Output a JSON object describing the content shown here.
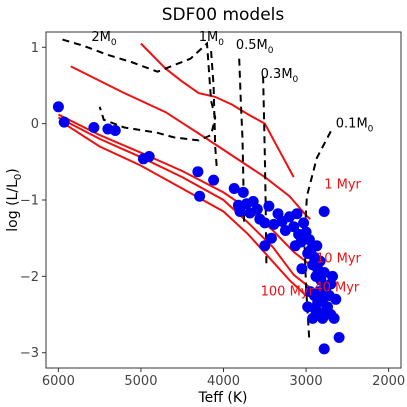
{
  "chart_data": {
    "type": "scatter",
    "title": "SDF00 models",
    "xlabel": "Teff (K)",
    "ylabel": "log (L/L",
    "ylabel_sub": "0",
    "ylabel_close": ")",
    "xlim": [
      6150,
      1850
    ],
    "ylim": [
      -3.2,
      1.2
    ],
    "x_ticks": [
      {
        "value": 6000,
        "label": "6000"
      },
      {
        "value": 5000,
        "label": "5000"
      },
      {
        "value": 4000,
        "label": "4000"
      },
      {
        "value": 3000,
        "label": "3000"
      },
      {
        "value": 2000,
        "label": "2000"
      }
    ],
    "y_ticks": [
      {
        "value": 1,
        "label": "1"
      },
      {
        "value": 0,
        "label": "0"
      },
      {
        "value": -1,
        "label": "−1"
      },
      {
        "value": -2,
        "label": "−2"
      },
      {
        "value": -3,
        "label": "−3"
      }
    ],
    "grid": false,
    "colors": {
      "points": "#0000ee",
      "isochrone": "#ee1111",
      "track": "#000000"
    },
    "points": [
      [
        6000,
        0.22
      ],
      [
        5930,
        0.02
      ],
      [
        5570,
        -0.05
      ],
      [
        5400,
        -0.07
      ],
      [
        5310,
        -0.09
      ],
      [
        4970,
        -0.46
      ],
      [
        4900,
        -0.43
      ],
      [
        4310,
        -0.63
      ],
      [
        4120,
        -0.74
      ],
      [
        4290,
        -0.95
      ],
      [
        3870,
        -0.85
      ],
      [
        3760,
        -0.9
      ],
      [
        3820,
        -1.07
      ],
      [
        3720,
        -1.05
      ],
      [
        3680,
        -1.17
      ],
      [
        3640,
        -1.02
      ],
      [
        3590,
        -1.12
      ],
      [
        3560,
        -1.25
      ],
      [
        3800,
        -1.15
      ],
      [
        3500,
        -1.3
      ],
      [
        3450,
        -1.08
      ],
      [
        3390,
        -1.32
      ],
      [
        3340,
        -1.18
      ],
      [
        3290,
        -1.28
      ],
      [
        3250,
        -1.4
      ],
      [
        3200,
        -1.22
      ],
      [
        3150,
        -1.35
      ],
      [
        3130,
        -1.6
      ],
      [
        3110,
        -1.18
      ],
      [
        3090,
        -1.45
      ],
      [
        3060,
        -1.55
      ],
      [
        3030,
        -1.3
      ],
      [
        3000,
        -1.42
      ],
      [
        3500,
        -1.6
      ],
      [
        3420,
        -1.5
      ],
      [
        2980,
        -1.7
      ],
      [
        2960,
        -1.52
      ],
      [
        2940,
        -1.65
      ],
      [
        2920,
        -1.85
      ],
      [
        2900,
        -1.75
      ],
      [
        2880,
        -2.0
      ],
      [
        2860,
        -1.9
      ],
      [
        2840,
        -2.2
      ],
      [
        2820,
        -2.05
      ],
      [
        2800,
        -2.3
      ],
      [
        2780,
        -1.95
      ],
      [
        2760,
        -2.15
      ],
      [
        2740,
        -2.4
      ],
      [
        2720,
        -2.25
      ],
      [
        2700,
        -2.1
      ],
      [
        2900,
        -2.25
      ],
      [
        2880,
        -2.45
      ],
      [
        2860,
        -2.35
      ],
      [
        2920,
        -2.55
      ],
      [
        2800,
        -2.55
      ],
      [
        2760,
        -2.45
      ],
      [
        2700,
        -2.5
      ],
      [
        2660,
        -2.55
      ],
      [
        2640,
        -2.3
      ],
      [
        2780,
        -1.15
      ],
      [
        2600,
        -2.8
      ],
      [
        2780,
        -2.95
      ],
      [
        2980,
        -2.4
      ],
      [
        2950,
        -2.2
      ],
      [
        2830,
        -1.8
      ],
      [
        3050,
        -1.9
      ],
      [
        2870,
        -1.6
      ],
      [
        2680,
        -2.0
      ]
    ],
    "isochrones": [
      {
        "label": "1 Myr",
        "x": [
          5850,
          5200,
          4700,
          4200,
          3850,
          3500,
          3200,
          3000,
          2950
        ],
        "y": [
          0.75,
          0.4,
          0.15,
          -0.2,
          -0.45,
          -0.7,
          -0.95,
          -1.2,
          -1.25
        ]
      },
      {
        "label": "",
        "x": [
          5000,
          4700,
          4500,
          4300,
          4100,
          3900,
          3700,
          3500,
          3300,
          3150
        ],
        "y": [
          1.05,
          0.72,
          0.55,
          0.4,
          0.35,
          0.25,
          0.12,
          0.0,
          -0.4,
          -0.7
        ]
      },
      {
        "label": "10 Myr",
        "x": [
          6000,
          5500,
          5000,
          4500,
          4000,
          3700,
          3400,
          3150,
          2950
        ],
        "y": [
          0.12,
          -0.15,
          -0.38,
          -0.62,
          -0.9,
          -1.12,
          -1.4,
          -1.68,
          -1.85
        ]
      },
      {
        "label": "40 Myr",
        "x": [
          6000,
          5500,
          5000,
          4500,
          4000,
          3700,
          3400,
          3150,
          2950
        ],
        "y": [
          0.08,
          -0.2,
          -0.44,
          -0.7,
          -1.0,
          -1.3,
          -1.62,
          -1.98,
          -2.15
        ]
      },
      {
        "label": "100 Myr",
        "x": [
          5900,
          5500,
          5000,
          4500,
          4000,
          3700,
          3450,
          3200,
          3000
        ],
        "y": [
          -0.02,
          -0.3,
          -0.55,
          -0.85,
          -1.15,
          -1.45,
          -1.75,
          -2.05,
          -2.25
        ]
      }
    ],
    "tracks": [
      {
        "label": "2M",
        "x": [
          5950,
          5700,
          5400,
          5100,
          4800,
          4400,
          4200,
          4150,
          4100,
          4150,
          4300,
          4600,
          4800,
          5200,
          5450,
          5500
        ],
        "y": [
          1.1,
          1.02,
          0.9,
          0.8,
          0.68,
          0.85,
          1.05,
          0.3,
          0.08,
          -0.15,
          -0.22,
          -0.18,
          -0.12,
          -0.05,
          0.05,
          0.22
        ]
      },
      {
        "label": "1M",
        "x": [
          4150,
          4120,
          4110,
          4100,
          4080
        ],
        "y": [
          0.95,
          0.5,
          0.1,
          -0.3,
          -0.6
        ]
      },
      {
        "label": "0.5M",
        "x": [
          3810,
          3790,
          3770,
          3760,
          3750
        ],
        "y": [
          0.85,
          0.3,
          -0.2,
          -0.7,
          -1.35
        ]
      },
      {
        "label": "0.3M",
        "x": [
          3520,
          3510,
          3500,
          3490,
          3480
        ],
        "y": [
          0.62,
          0.1,
          -0.4,
          -1.0,
          -1.85
        ]
      },
      {
        "label": "0.1M",
        "x": [
          2700,
          2870,
          2990,
          3020,
          3000,
          2960
        ],
        "y": [
          -0.1,
          -0.45,
          -0.95,
          -1.55,
          -2.15,
          -2.85
        ]
      }
    ],
    "track_labels": [
      {
        "text": "2M",
        "sub": "0",
        "x": 5600,
        "y": 1.08
      },
      {
        "text": "1M",
        "sub": "0",
        "x": 4300,
        "y": 1.08
      },
      {
        "text": "0.5M",
        "sub": "0",
        "x": 3850,
        "y": 0.98
      },
      {
        "text": "0.3M",
        "sub": "0",
        "x": 3550,
        "y": 0.6
      },
      {
        "text": "0.1M",
        "sub": "0",
        "x": 2640,
        "y": -0.05
      }
    ],
    "isochrone_labels": [
      {
        "text": "1 Myr",
        "x": 2780,
        "y": -0.85
      },
      {
        "text": "10 Myr",
        "x": 2880,
        "y": -1.82
      },
      {
        "text": "40 Myr",
        "x": 2900,
        "y": -2.2
      },
      {
        "text": "100 Myr",
        "x": 3550,
        "y": -2.25
      }
    ]
  }
}
